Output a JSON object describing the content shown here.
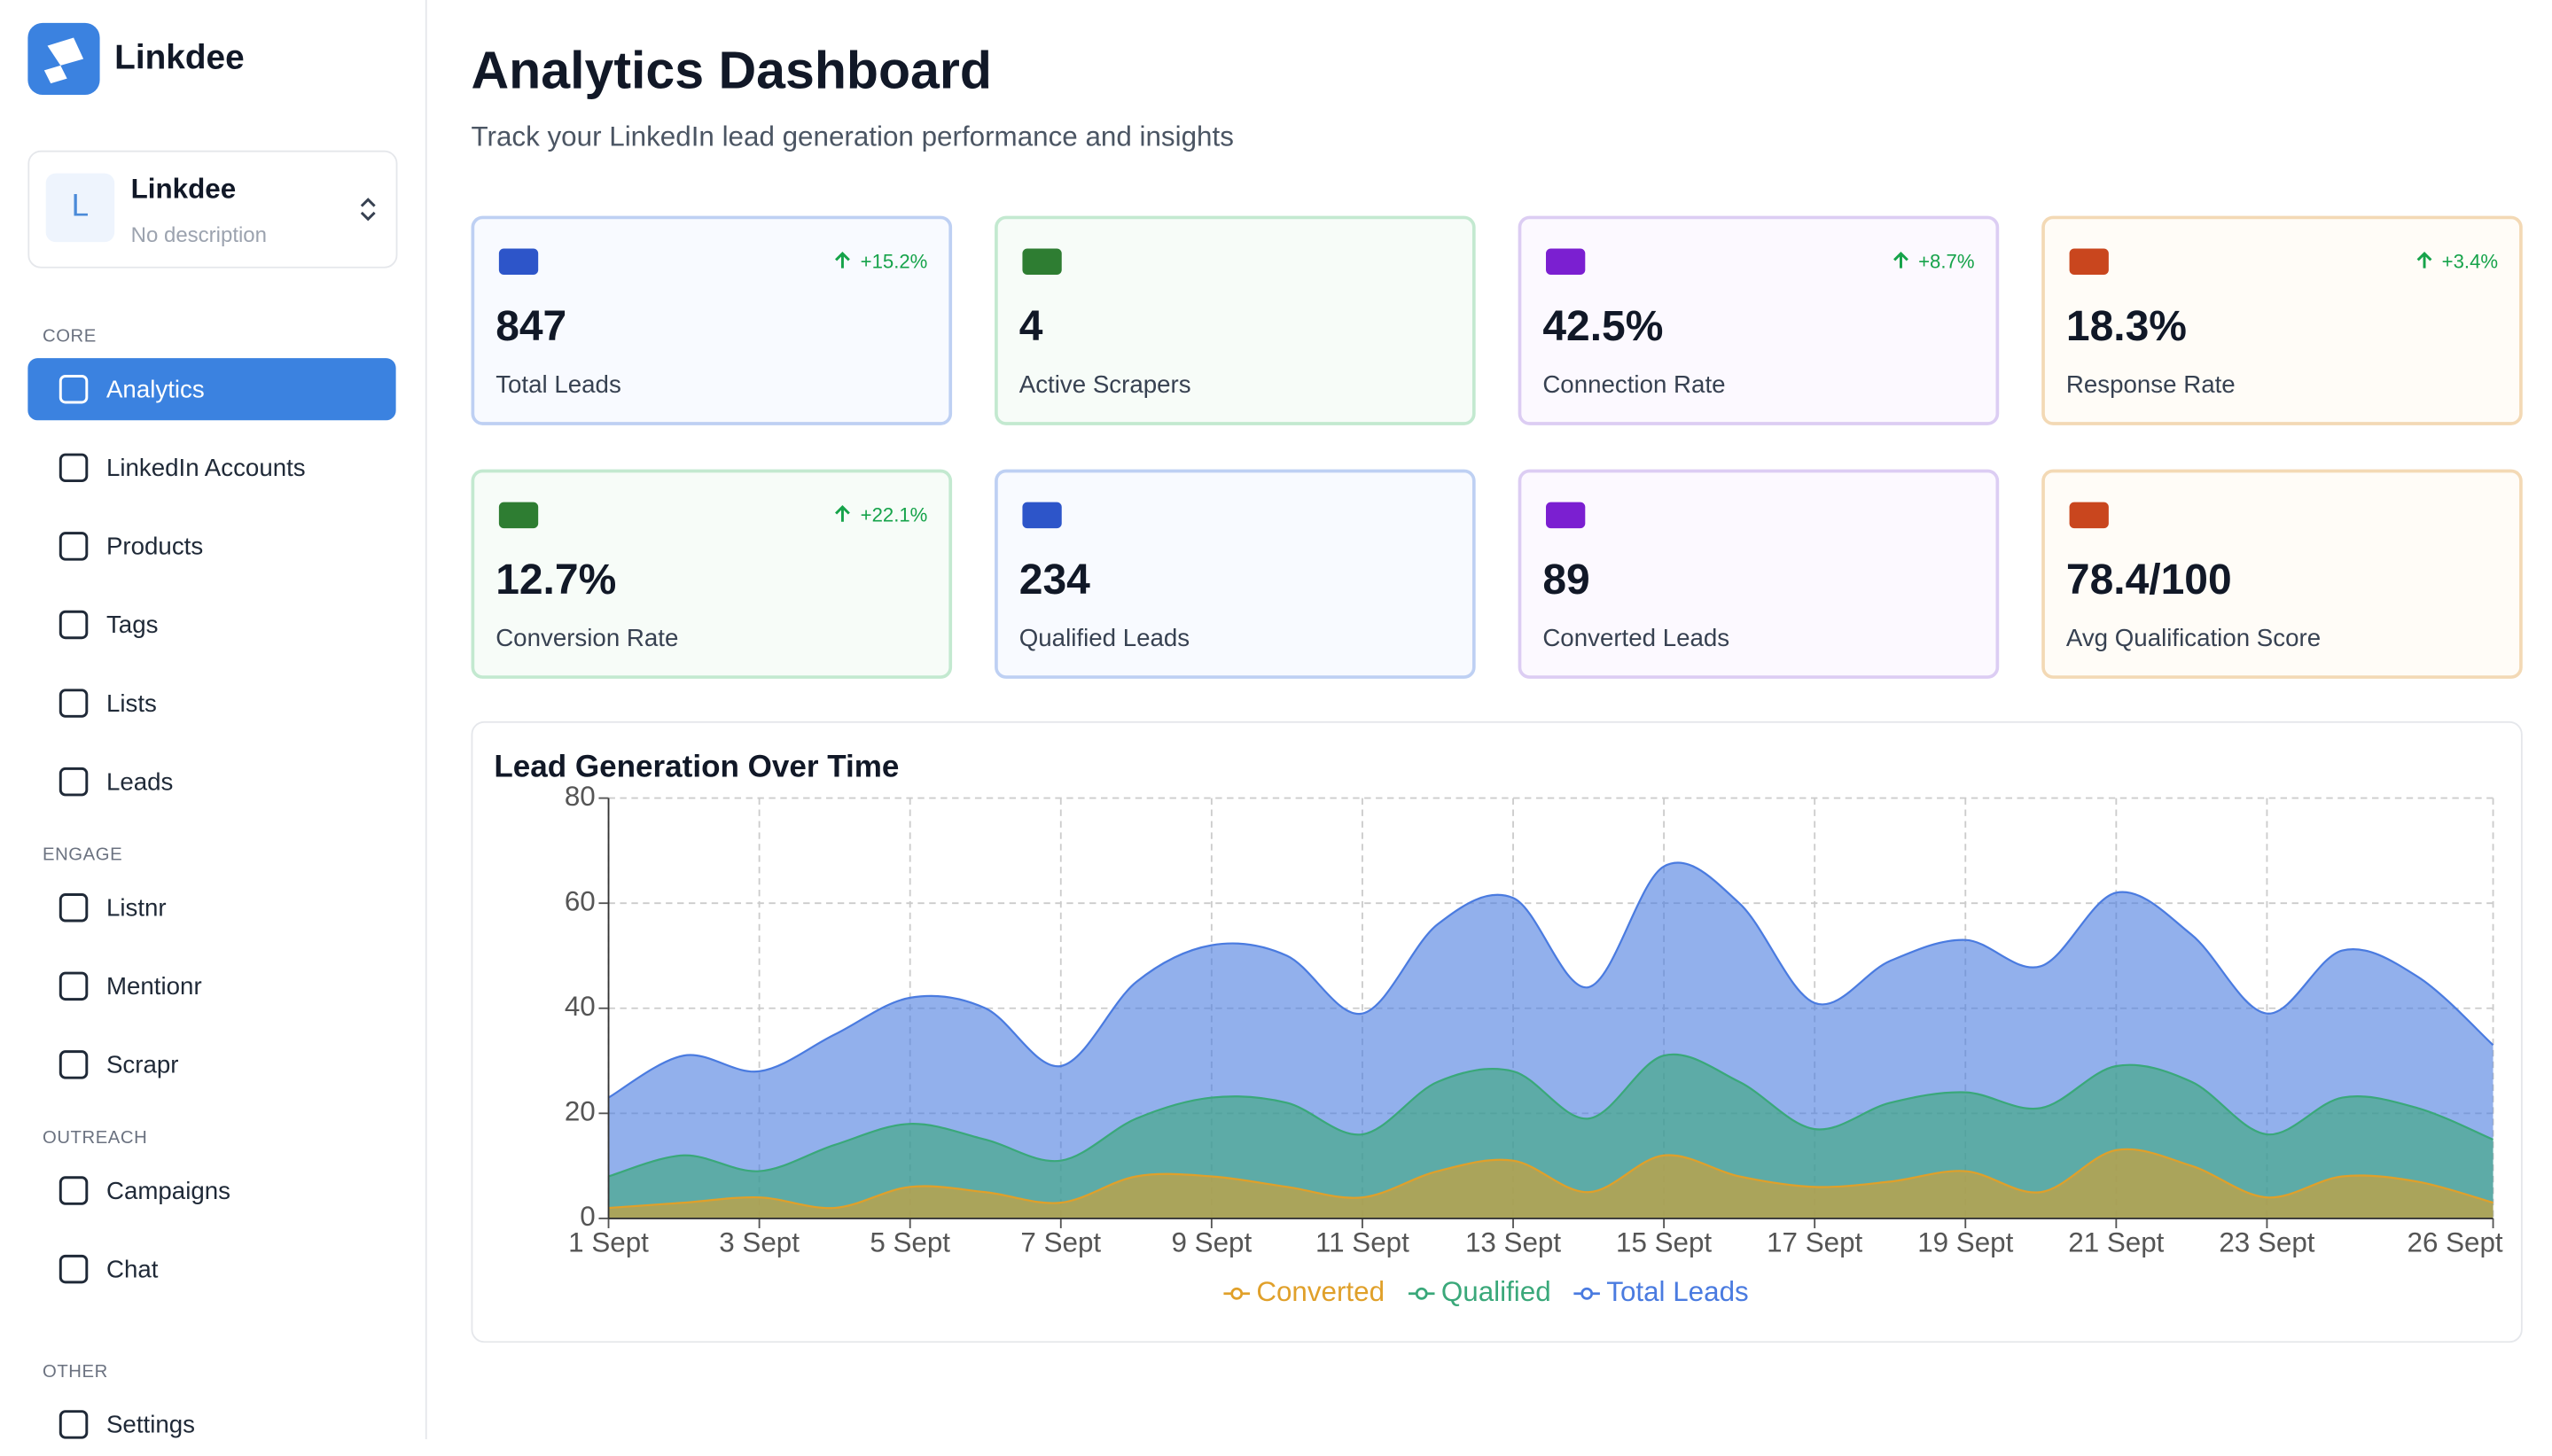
{
  "sidebar": {
    "brand": "Linkdee",
    "workspace": {
      "initial": "L",
      "name": "Linkdee",
      "description": "No description"
    },
    "sections": [
      {
        "label": "CORE",
        "items": [
          "Analytics",
          "LinkedIn Accounts",
          "Products",
          "Tags",
          "Lists",
          "Leads"
        ]
      },
      {
        "label": "ENGAGE",
        "items": [
          "Listnr",
          "Mentionr",
          "Scrapr"
        ]
      },
      {
        "label": "OUTREACH",
        "items": [
          "Campaigns",
          "Chat"
        ]
      },
      {
        "label": "OTHER",
        "items": [
          "Settings"
        ]
      }
    ],
    "active": "Analytics"
  },
  "header": {
    "title": "Analytics Dashboard",
    "subtitle": "Track your LinkedIn lead generation performance and insights"
  },
  "stats": [
    {
      "value": "847",
      "label": "Total Leads",
      "change": "+15.2%"
    },
    {
      "value": "4",
      "label": "Active Scrapers"
    },
    {
      "value": "42.5%",
      "label": "Connection Rate",
      "change": "+8.7%"
    },
    {
      "value": "18.3%",
      "label": "Response Rate",
      "change": "+3.4%"
    },
    {
      "value": "12.7%",
      "label": "Conversion Rate",
      "change": "+22.1%"
    },
    {
      "value": "234",
      "label": "Qualified Leads"
    },
    {
      "value": "89",
      "label": "Converted Leads"
    },
    {
      "value": "78.4/100",
      "label": "Avg Qualification Score"
    }
  ],
  "chart_data": {
    "type": "area",
    "title": "Lead Generation Over Time",
    "categories": [
      "1 Sept",
      null,
      "3 Sept",
      null,
      "5 Sept",
      null,
      "7 Sept",
      null,
      "9 Sept",
      null,
      "11 Sept",
      null,
      "13 Sept",
      null,
      "15 Sept",
      null,
      "17 Sept",
      null,
      "19 Sept",
      null,
      "21 Sept",
      null,
      "23 Sept",
      null,
      null,
      "26 Sept"
    ],
    "series": [
      {
        "name": "Converted",
        "color": "#e0a02a",
        "values": [
          2,
          3,
          4,
          2,
          6,
          5,
          3,
          8,
          8,
          6,
          4,
          9,
          11,
          5,
          12,
          8,
          6,
          7,
          9,
          5,
          13,
          10,
          4,
          8,
          7,
          3
        ]
      },
      {
        "name": "Qualified",
        "color": "#3aa87a",
        "values": [
          8,
          12,
          9,
          14,
          18,
          15,
          11,
          19,
          23,
          22,
          16,
          26,
          28,
          19,
          31,
          26,
          17,
          22,
          24,
          21,
          29,
          26,
          16,
          23,
          21,
          15
        ]
      },
      {
        "name": "Total Leads",
        "color": "#4a7be0",
        "values": [
          23,
          31,
          28,
          35,
          42,
          40,
          29,
          45,
          52,
          50,
          39,
          56,
          61,
          44,
          67,
          60,
          41,
          49,
          53,
          48,
          62,
          54,
          39,
          51,
          46,
          33
        ]
      }
    ],
    "ylim": [
      0,
      80
    ],
    "yticks": [
      0,
      20,
      40,
      60,
      80
    ],
    "grid": true
  }
}
